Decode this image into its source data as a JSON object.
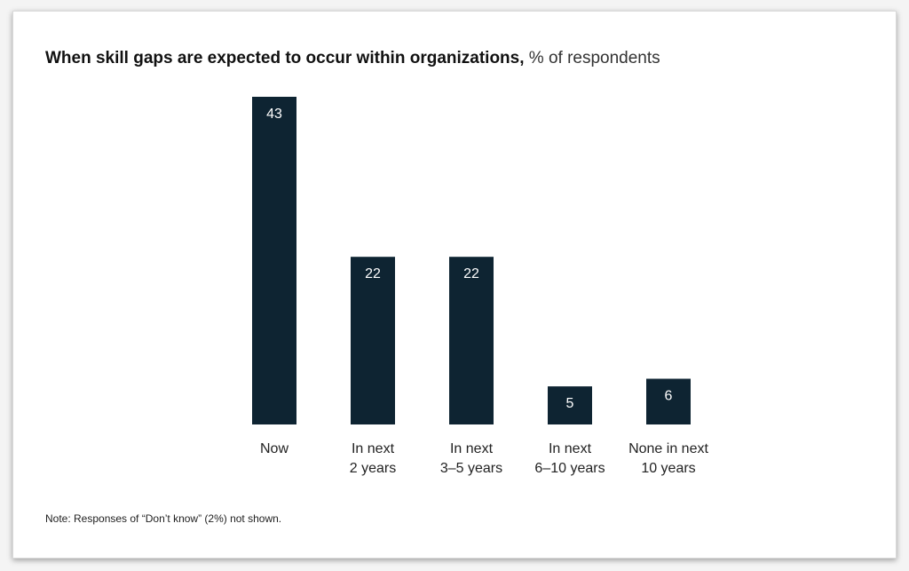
{
  "chart_data": {
    "type": "bar",
    "title": "When skill gaps are expected to occur within organizations,",
    "subtitle": "% of respondents",
    "categories": [
      [
        "Now"
      ],
      [
        "In next",
        "2 years"
      ],
      [
        "In next",
        "3–5 years"
      ],
      [
        "In next",
        "6–10 years"
      ],
      [
        "None in next",
        "10 years"
      ]
    ],
    "values": [
      43,
      22,
      22,
      5,
      6
    ],
    "ylim": [
      0,
      43
    ],
    "grid": false,
    "bar_color": "#0e2432",
    "label_color": "#ffffff",
    "note": "Note: Responses of “Don’t know” (2%) not shown."
  }
}
